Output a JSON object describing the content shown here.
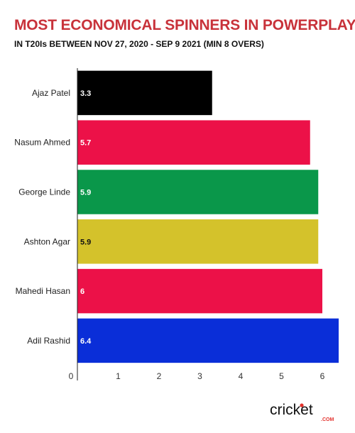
{
  "chart_data": {
    "type": "bar",
    "orientation": "horizontal",
    "title": "MOST ECONOMICAL SPINNERS IN POWERPLAY",
    "subtitle": "IN T20Is BETWEEN NOV 27, 2020 - SEP 9 2021 (MIN 8 OVERS)",
    "categories": [
      "Ajaz Patel",
      "Nasum Ahmed",
      "George Linde",
      "Ashton Agar",
      "Mahedi Hasan",
      "Adil Rashid"
    ],
    "values": [
      3.3,
      5.7,
      5.9,
      5.9,
      6,
      6.4
    ],
    "data_labels": [
      "3.3",
      "5.7",
      "5.9",
      "5.9",
      "6",
      "6.4"
    ],
    "bar_colors": [
      "#000000",
      "#ec1148",
      "#0a974a",
      "#d4c22b",
      "#ec1148",
      "#0a2ed8"
    ],
    "label_colors": [
      "#ffffff",
      "#ffffff",
      "#ffffff",
      "#111111",
      "#ffffff",
      "#ffffff"
    ],
    "xticks": [
      0,
      1,
      2,
      3,
      4,
      5,
      6
    ],
    "xlim": [
      0,
      6.4
    ],
    "grid": false,
    "legend": "none"
  },
  "branding": {
    "logo_main": "cricket",
    "logo_sub": ".COM",
    "accent": "#e3312c"
  }
}
